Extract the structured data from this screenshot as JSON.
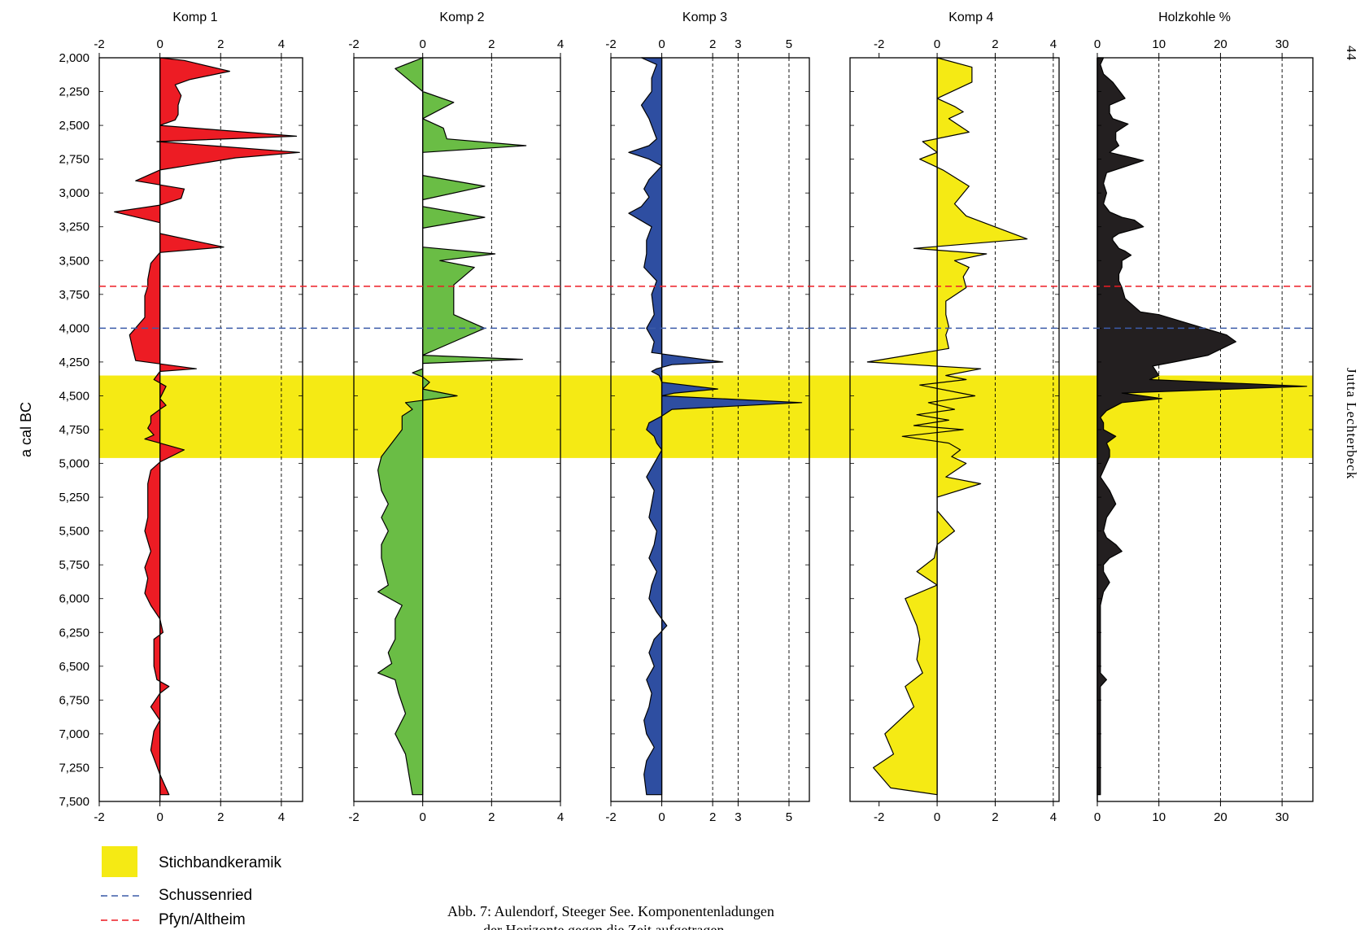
{
  "page_number": "44",
  "author": "Jutta Lechterbeck",
  "caption": [
    "Abb. 7: Aulendorf, Steeger See. Komponentenladungen",
    "der Horizonte gegen die Zeit aufgetragen."
  ],
  "colors": {
    "komp1": "#ed1c24",
    "komp2": "#6abd45",
    "komp3": "#2e4ea1",
    "komp4": "#f5ea14",
    "holzkohle": "#231f20",
    "band": "#f5ea14",
    "schussenried": "#3b5ba9",
    "pfyn": "#ed1c24"
  },
  "chart_data": {
    "type": "area",
    "y_axis": {
      "label": "a cal BC",
      "range": [
        2000,
        7500
      ],
      "ticks": [
        "2,000",
        "2,250",
        "2,500",
        "2,750",
        "3,000",
        "3,250",
        "3,500",
        "3,750",
        "4,000",
        "4,250",
        "4,500",
        "4,750",
        "5,000",
        "5,250",
        "5,500",
        "5,750",
        "6,000",
        "6,250",
        "6,500",
        "6,750",
        "7,000",
        "7,250",
        "7,500"
      ]
    },
    "bands": [
      {
        "name": "Stichbandkeramik",
        "from": 4350,
        "to": 4960,
        "color": "#f5ea14"
      }
    ],
    "horizons": [
      {
        "name": "Schussenried",
        "at": 4000,
        "color": "#3b5ba9"
      },
      {
        "name": "Pfyn/Altheim",
        "at": 3690,
        "color": "#ed1c24"
      }
    ],
    "panels": [
      {
        "title": "Komp 1",
        "color": "#ed1c24",
        "xlim": [
          -2,
          4.7
        ],
        "ticks": [
          -2,
          0,
          2,
          4
        ],
        "ref": [
          2,
          4
        ],
        "ages": [
          2000,
          2020,
          2100,
          2160,
          2200,
          2280,
          2350,
          2420,
          2460,
          2500,
          2580,
          2620,
          2700,
          2740,
          2830,
          2910,
          2970,
          3040,
          3090,
          3140,
          3220,
          3300,
          3400,
          3440,
          3520,
          3640,
          3690,
          3760,
          3920,
          4050,
          4150,
          4240,
          4300,
          4320,
          4380,
          4430,
          4520,
          4570,
          4600,
          4650,
          4700,
          4740,
          4790,
          4820,
          4850,
          4900,
          4990,
          5050,
          5150,
          5400,
          5500,
          5650,
          5770,
          5850,
          5960,
          6050,
          6150,
          6250,
          6300,
          6500,
          6600,
          6650,
          6700,
          6800,
          6900,
          6980,
          7120,
          7300,
          7450
        ],
        "values": [
          0,
          0.8,
          2.3,
          1.0,
          0.5,
          0.7,
          0.6,
          0.6,
          0.5,
          0,
          4.5,
          -0.1,
          4.6,
          2.5,
          0,
          -0.8,
          0.8,
          0.7,
          0,
          -1.5,
          0,
          0,
          2.1,
          0,
          -0.3,
          -0.4,
          -0.4,
          -0.5,
          -0.5,
          -1.0,
          -0.9,
          -0.8,
          1.2,
          0,
          -0.2,
          0.2,
          0,
          0.2,
          0,
          -0.3,
          -0.3,
          -0.4,
          -0.2,
          -0.5,
          0,
          0.8,
          0,
          -0.3,
          -0.4,
          -0.4,
          -0.5,
          -0.3,
          -0.5,
          -0.4,
          -0.5,
          -0.3,
          0,
          0.1,
          -0.2,
          -0.2,
          -0.1,
          0.3,
          0,
          -0.3,
          0,
          -0.2,
          -0.3,
          0,
          0.3
        ]
      },
      {
        "title": "Komp 2",
        "color": "#6abd45",
        "xlim": [
          -2,
          4
        ],
        "ticks": [
          -2,
          0,
          2,
          4
        ],
        "ref": [
          2
        ],
        "ages": [
          2000,
          2080,
          2250,
          2330,
          2450,
          2520,
          2600,
          2650,
          2700,
          2800,
          2870,
          2950,
          3050,
          3100,
          3180,
          3260,
          3400,
          3450,
          3500,
          3550,
          3680,
          3750,
          3900,
          4000,
          4100,
          4200,
          4230,
          4260,
          4300,
          4330,
          4360,
          4400,
          4450,
          4500,
          4550,
          4600,
          4650,
          4750,
          4850,
          4950,
          5050,
          5200,
          5300,
          5400,
          5500,
          5600,
          5700,
          5800,
          5900,
          5950,
          6050,
          6150,
          6300,
          6400,
          6480,
          6550,
          6600,
          6700,
          6850,
          7000,
          7150,
          7300,
          7450
        ],
        "values": [
          0,
          -0.8,
          0,
          0.9,
          0,
          0.6,
          0.7,
          3.0,
          0,
          0,
          0,
          1.8,
          0,
          0,
          1.8,
          0,
          0,
          2.1,
          0.5,
          1.5,
          0.9,
          0.9,
          0.9,
          1.8,
          0.9,
          0,
          2.9,
          0,
          0,
          -0.3,
          0,
          0.2,
          0,
          1.0,
          -0.5,
          -0.3,
          -0.6,
          -0.6,
          -0.9,
          -1.2,
          -1.3,
          -1.2,
          -1.0,
          -1.2,
          -1.0,
          -1.2,
          -1.2,
          -1.1,
          -1.0,
          -1.3,
          -0.6,
          -0.8,
          -0.8,
          -1.0,
          -0.9,
          -1.3,
          -0.8,
          -0.7,
          -0.5,
          -0.8,
          -0.5,
          -0.4,
          -0.3
        ]
      },
      {
        "title": "Komp 3",
        "color": "#2e4ea1",
        "xlim": [
          -2,
          5.8
        ],
        "ticks": [
          -2,
          0,
          2,
          3,
          5
        ],
        "ref": [
          2,
          3,
          5
        ],
        "ages": [
          2000,
          2050,
          2150,
          2250,
          2350,
          2450,
          2600,
          2650,
          2700,
          2750,
          2800,
          2900,
          2970,
          3030,
          3100,
          3150,
          3250,
          3350,
          3450,
          3550,
          3650,
          3750,
          3900,
          4000,
          4100,
          4180,
          4250,
          4270,
          4300,
          4320,
          4350,
          4400,
          4450,
          4480,
          4500,
          4550,
          4600,
          4650,
          4700,
          4750,
          4800,
          4850,
          4900,
          5000,
          5100,
          5200,
          5300,
          5400,
          5500,
          5600,
          5700,
          5800,
          5900,
          6000,
          6100,
          6200,
          6300,
          6400,
          6500,
          6600,
          6700,
          6800,
          6900,
          7000,
          7100,
          7200,
          7300,
          7450
        ],
        "values": [
          -0.8,
          -0.2,
          -0.4,
          -0.4,
          -0.8,
          -0.5,
          -0.2,
          -0.5,
          -1.3,
          -0.5,
          0,
          -0.5,
          -0.7,
          -0.5,
          -0.8,
          -1.3,
          -0.4,
          -0.6,
          -0.6,
          -0.7,
          -0.2,
          -0.4,
          -0.3,
          -0.6,
          -0.3,
          -0.4,
          2.4,
          0.4,
          -0.2,
          -0.4,
          -0.1,
          0,
          2.2,
          0.5,
          0,
          5.5,
          0.4,
          0,
          -0.5,
          -0.6,
          -0.3,
          -0.2,
          0,
          -0.3,
          -0.6,
          -0.3,
          -0.4,
          -0.5,
          -0.2,
          -0.3,
          -0.5,
          -0.2,
          -0.4,
          -0.5,
          -0.2,
          0.2,
          -0.3,
          -0.5,
          -0.3,
          -0.6,
          -0.4,
          -0.5,
          -0.7,
          -0.6,
          -0.3,
          -0.6,
          -0.7,
          -0.6
        ]
      },
      {
        "title": "Komp 4",
        "color": "#f5ea14",
        "xlim": [
          -3,
          4.2
        ],
        "ticks": [
          -2,
          0,
          2,
          4
        ],
        "ref": [
          2,
          4
        ],
        "ages": [
          2000,
          2070,
          2180,
          2300,
          2360,
          2400,
          2450,
          2550,
          2620,
          2700,
          2750,
          2830,
          2950,
          3080,
          3170,
          3340,
          3410,
          3450,
          3500,
          3550,
          3620,
          3700,
          3800,
          3900,
          3990,
          4050,
          4150,
          4250,
          4300,
          4350,
          4380,
          4420,
          4500,
          4550,
          4600,
          4640,
          4680,
          4720,
          4750,
          4800,
          4850,
          4900,
          4950,
          5000,
          5100,
          5150,
          5250,
          5300,
          5350,
          5500,
          5600,
          5700,
          5800,
          5900,
          6000,
          6200,
          6300,
          6450,
          6550,
          6650,
          6800,
          7000,
          7150,
          7250,
          7400,
          7450
        ],
        "values": [
          0,
          1.2,
          1.2,
          0,
          0.6,
          0.9,
          0.4,
          1.1,
          -0.5,
          0,
          -0.6,
          0.2,
          1.1,
          0.6,
          1.0,
          3.1,
          -0.8,
          1.7,
          0.6,
          1.1,
          0.9,
          1.0,
          0.3,
          0.3,
          0.4,
          0.3,
          0.4,
          -2.4,
          1.5,
          0.3,
          1.0,
          -0.6,
          1.3,
          -0.3,
          0.6,
          -0.7,
          0.4,
          -0.8,
          0.9,
          -1.2,
          0.4,
          0.8,
          0.5,
          1.0,
          0.3,
          1.5,
          0,
          0,
          0,
          0.6,
          0,
          -0.1,
          -0.7,
          0,
          -1.1,
          -0.7,
          -0.6,
          -0.7,
          -0.5,
          -1.1,
          -0.8,
          -1.8,
          -1.5,
          -2.2,
          -1.6,
          0
        ]
      },
      {
        "title": "Holzkohle %",
        "color": "#231f20",
        "xlim": [
          0,
          35
        ],
        "ticks": [
          0,
          10,
          20,
          30
        ],
        "ref": [
          10,
          20,
          30
        ],
        "ages": [
          2000,
          2050,
          2120,
          2180,
          2240,
          2300,
          2350,
          2410,
          2450,
          2490,
          2550,
          2610,
          2650,
          2700,
          2760,
          2850,
          2930,
          3000,
          3080,
          3140,
          3180,
          3200,
          3250,
          3300,
          3330,
          3350,
          3410,
          3430,
          3460,
          3500,
          3550,
          3600,
          3650,
          3700,
          3780,
          3880,
          3900,
          4050,
          4100,
          4200,
          4250,
          4280,
          4350,
          4380,
          4430,
          4480,
          4520,
          4550,
          4610,
          4660,
          4700,
          4750,
          4800,
          4850,
          4900,
          4950,
          5000,
          5100,
          5200,
          5300,
          5400,
          5500,
          5550,
          5600,
          5650,
          5700,
          5750,
          5800,
          5880,
          5950,
          6050,
          6100,
          6200,
          6300,
          6400,
          6550,
          6600,
          6650,
          6700,
          6800,
          7000,
          7200,
          7450
        ],
        "values": [
          1.0,
          0.5,
          1.0,
          2.5,
          3.5,
          4.5,
          2.0,
          2.0,
          2.5,
          5.0,
          3.0,
          3.0,
          3.5,
          2.0,
          7.5,
          1.5,
          1.0,
          1.5,
          1.0,
          2.0,
          4.0,
          6.0,
          7.5,
          3.5,
          2.5,
          2.5,
          3.5,
          4.5,
          5.5,
          4.0,
          4.0,
          3.5,
          3.5,
          4.0,
          4.5,
          7.0,
          10.0,
          21.0,
          22.5,
          18.0,
          12.5,
          9.0,
          10.0,
          8.5,
          34.0,
          4.0,
          10.5,
          4.0,
          1.5,
          0.5,
          1.0,
          1.0,
          3.0,
          1.5,
          2.0,
          2.0,
          1.5,
          0.5,
          2.0,
          3.0,
          1.5,
          1.0,
          1.5,
          3.0,
          4.0,
          2.0,
          1.0,
          1.0,
          2.0,
          1.0,
          0.5,
          0.5,
          0.5,
          0.5,
          0.5,
          0.5,
          1.5,
          0.5,
          0.5,
          0.5,
          0.5,
          0.5,
          0.5
        ]
      }
    ]
  }
}
